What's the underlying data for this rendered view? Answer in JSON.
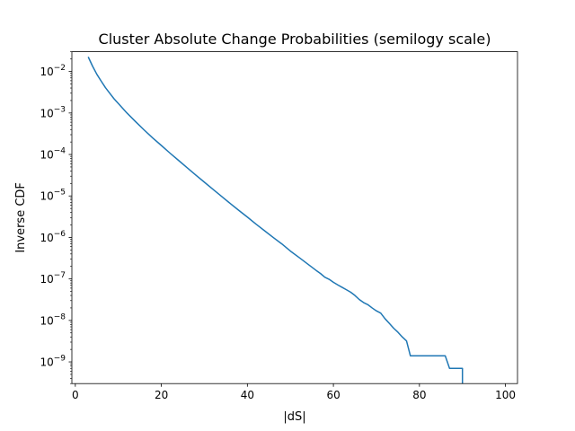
{
  "chart_data": {
    "type": "line",
    "title": "Cluster Absolute Change Probabilities (semilogy scale)",
    "xlabel": "|dS|",
    "ylabel": "Inverse CDF",
    "xlim": [
      -0.8,
      102.8
    ],
    "ylim": [
      3e-10,
      0.03
    ],
    "yscale": "log",
    "grid": false,
    "x_ticks": [
      0,
      20,
      40,
      60,
      80,
      100
    ],
    "y_ticks": [
      {
        "exp": "-9",
        "value": 1e-09
      },
      {
        "exp": "-8",
        "value": 1e-08
      },
      {
        "exp": "-7",
        "value": 1e-07
      },
      {
        "exp": "-6",
        "value": 1e-06
      },
      {
        "exp": "-5",
        "value": 1e-05
      },
      {
        "exp": "-4",
        "value": 0.0001
      },
      {
        "exp": "-3",
        "value": 0.001
      },
      {
        "exp": "-2",
        "value": 0.01
      }
    ],
    "y_tick_base": "10",
    "line_color": "#1f77b4",
    "series": [
      {
        "x": [
          3,
          4,
          5,
          6,
          7,
          8,
          9,
          10,
          12,
          14,
          16,
          18,
          20,
          22,
          24,
          26,
          28,
          30,
          32,
          34,
          36,
          38,
          40,
          42,
          44,
          46,
          48,
          50,
          52,
          54,
          56,
          57,
          58,
          59,
          60,
          61,
          62,
          63,
          64,
          65,
          66,
          67,
          68,
          69,
          70,
          71,
          72,
          73,
          74,
          75,
          76,
          77,
          77.9,
          86,
          87,
          90,
          90,
          90.1
        ],
        "y": [
          0.0225,
          0.0135,
          0.0086,
          0.0059,
          0.0041,
          0.003,
          0.0022,
          0.0017,
          0.001,
          0.00062,
          0.00039,
          0.00025,
          0.000165,
          0.000108,
          7.2e-05,
          4.8e-05,
          3.2e-05,
          2.15e-05,
          1.45e-05,
          9.8e-06,
          6.6e-06,
          4.5e-06,
          3.1e-06,
          2.1e-06,
          1.45e-06,
          1e-06,
          7e-07,
          4.7e-07,
          3.3e-07,
          2.3e-07,
          1.6e-07,
          1.35e-07,
          1.1e-07,
          9.8e-08,
          8.3e-08,
          7.2e-08,
          6.3e-08,
          5.5e-08,
          4.8e-08,
          4e-08,
          3.2e-08,
          2.7e-08,
          2.4e-08,
          2e-08,
          1.7e-08,
          1.5e-08,
          1.1e-08,
          8.5e-09,
          6.5e-09,
          5.2e-09,
          4e-09,
          3.2e-09,
          1.4e-09,
          1.4e-09,
          7e-10,
          7e-10,
          2.5e-10,
          2.5e-10
        ]
      }
    ]
  }
}
